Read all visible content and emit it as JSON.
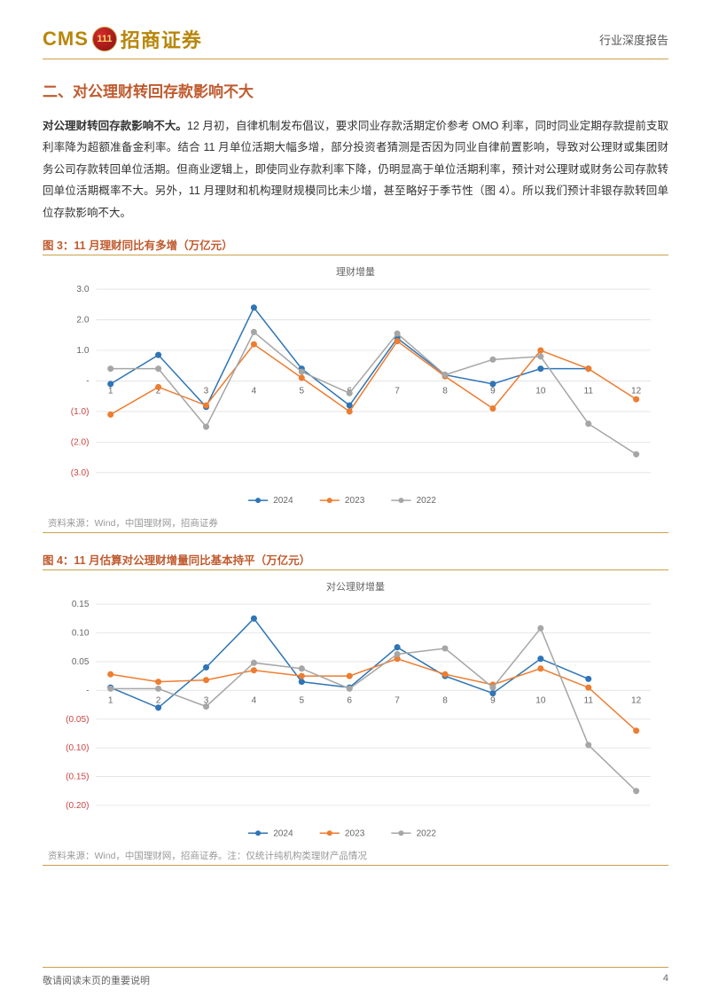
{
  "header": {
    "logo_cms": "CMS",
    "logo_emblem_text": "111",
    "logo_cn": "招商证券",
    "report_type": "行业深度报告"
  },
  "section": {
    "title": "二、对公理财转回存款影响不大",
    "para_lead": "对公理财转回存款影响不大。",
    "para_body": "12 月初，自律机制发布倡议，要求同业存款活期定价参考 OMO 利率，同时同业定期存款提前支取利率降为超额准备金利率。结合 11 月单位活期大幅多增，部分投资者猜测是否因为同业自律前置影响，导致对公理财或集团财务公司存款转回单位活期。但商业逻辑上，即使同业存款利率下降，仍明显高于单位活期利率，预计对公理财或财务公司存款转回单位活期概率不大。另外，11 月理财和机构理财规模同比未少增，甚至略好于季节性（图 4）。所以我们预计非银存款转回单位存款影响不大。"
  },
  "fig3": {
    "title": "图 3：11 月理财同比有多增（万亿元）",
    "subtitle": "理财增量",
    "type": "line",
    "x_categories": [
      "1",
      "2",
      "3",
      "4",
      "5",
      "6",
      "7",
      "8",
      "9",
      "10",
      "11",
      "12"
    ],
    "ylim": [
      -3.0,
      3.0
    ],
    "ytick_step": 1.0,
    "y_ticks_pos": [
      "3.0",
      "2.0",
      "1.0"
    ],
    "y_ticks_zero": "-",
    "y_ticks_neg": [
      "(1.0)",
      "(2.0)",
      "(3.0)"
    ],
    "series": [
      {
        "name": "2024",
        "color": "#2e75b6",
        "values": [
          -0.1,
          0.85,
          -0.85,
          2.4,
          0.4,
          -0.8,
          1.4,
          0.2,
          -0.1,
          0.4,
          0.4,
          null
        ]
      },
      {
        "name": "2023",
        "color": "#ed7d31",
        "values": [
          -1.1,
          -0.2,
          -0.8,
          1.2,
          0.1,
          -1.0,
          1.3,
          0.15,
          -0.9,
          1.0,
          0.4,
          -0.6
        ]
      },
      {
        "name": "2022",
        "color": "#a6a6a6",
        "values": [
          0.4,
          0.4,
          -1.5,
          1.6,
          0.3,
          -0.4,
          1.55,
          0.2,
          0.7,
          0.8,
          -1.4,
          -2.4
        ]
      }
    ],
    "source": "资料来源：Wind，中国理财网，招商证券",
    "background_color": "#ffffff",
    "grid_color": "#e0e0e0",
    "marker_style": "circle",
    "marker_size": 3,
    "line_width": 1.5,
    "label_fontsize": 10
  },
  "fig4": {
    "title": "图 4：11 月估算对公理财增量同比基本持平（万亿元）",
    "subtitle": "对公理财增量",
    "type": "line",
    "x_categories": [
      "1",
      "2",
      "3",
      "4",
      "5",
      "6",
      "7",
      "8",
      "9",
      "10",
      "11",
      "12"
    ],
    "ylim": [
      -0.2,
      0.15
    ],
    "ytick_step": 0.05,
    "y_ticks_pos": [
      "0.15",
      "0.10",
      "0.05"
    ],
    "y_ticks_zero": "-",
    "y_ticks_neg": [
      "(0.05)",
      "(0.10)",
      "(0.15)",
      "(0.20)"
    ],
    "series": [
      {
        "name": "2024",
        "color": "#2e75b6",
        "values": [
          0.005,
          -0.03,
          0.04,
          0.125,
          0.015,
          0.005,
          0.075,
          0.025,
          -0.005,
          0.055,
          0.02,
          null
        ]
      },
      {
        "name": "2023",
        "color": "#ed7d31",
        "values": [
          0.028,
          0.015,
          0.018,
          0.035,
          0.025,
          0.025,
          0.055,
          0.028,
          0.01,
          0.038,
          0.005,
          -0.07
        ]
      },
      {
        "name": "2022",
        "color": "#a6a6a6",
        "values": [
          0.003,
          0.003,
          -0.028,
          0.048,
          0.038,
          0.003,
          0.063,
          0.073,
          0.005,
          0.108,
          -0.095,
          -0.175
        ]
      }
    ],
    "source": "资料来源：Wind，中国理财网，招商证券。注：仅统计纯机构类理财产品情况",
    "background_color": "#ffffff",
    "grid_color": "#e0e0e0",
    "marker_style": "circle",
    "marker_size": 3,
    "line_width": 1.5,
    "label_fontsize": 10
  },
  "footer": {
    "disclaimer": "敬请阅读末页的重要说明",
    "page": "4"
  }
}
